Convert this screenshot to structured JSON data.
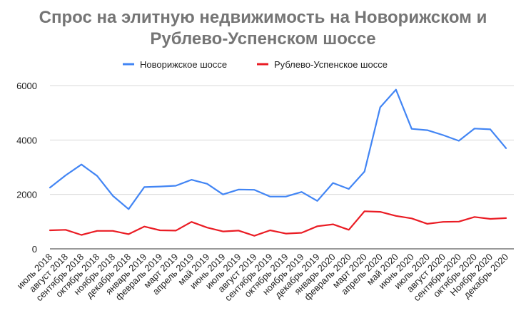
{
  "chart_data": {
    "type": "line",
    "title_lines": [
      "Спрос на элитную недвижимость на Новорижском и",
      "Рублево-Успенском шоссе"
    ],
    "xlabel": "",
    "ylabel": "",
    "ylim": [
      0,
      6000
    ],
    "yticks": [
      0,
      2000,
      4000,
      6000
    ],
    "grid": true,
    "legend_position": "top",
    "categories": [
      "июль 2018",
      "август 2018",
      "сентябрь 2018",
      "октябрь 2018",
      "ноябрь 2018",
      "декабрь 2018",
      "январь 2019",
      "февраль 2019",
      "март 2019",
      "апрель 2019",
      "май 2019",
      "июнь 2019",
      "июль 2019",
      "август 2019",
      "сентябрь 2019",
      "октябрь 2019",
      "ноябрь 2019",
      "декабрь 2019",
      "январь 2020",
      "февраль 2020",
      "март 2020",
      "апрель 2020",
      "май 2020",
      "июнь 2020",
      "июль 2020",
      "август 2020",
      "сентябрь 2020",
      "октябрь 2020",
      "Ноябрь 2020",
      "декабрь 2020"
    ],
    "series": [
      {
        "name": "Новорижское шоссе",
        "color": "#4285f4",
        "values": [
          2250,
          2700,
          3100,
          2680,
          1950,
          1460,
          2270,
          2290,
          2320,
          2540,
          2390,
          2000,
          2180,
          2170,
          1920,
          1920,
          2090,
          1760,
          2420,
          2200,
          2840,
          5200,
          5850,
          4410,
          4360,
          4180,
          3970,
          4420,
          4390,
          3700
        ]
      },
      {
        "name": "Рублево-Успенское шоссе",
        "color": "#ea1c24",
        "values": [
          680,
          700,
          510,
          660,
          660,
          540,
          820,
          680,
          670,
          990,
          780,
          640,
          670,
          480,
          680,
          560,
          590,
          830,
          900,
          700,
          1380,
          1360,
          1210,
          1120,
          920,
          990,
          1000,
          1170,
          1100,
          1130
        ]
      }
    ]
  }
}
